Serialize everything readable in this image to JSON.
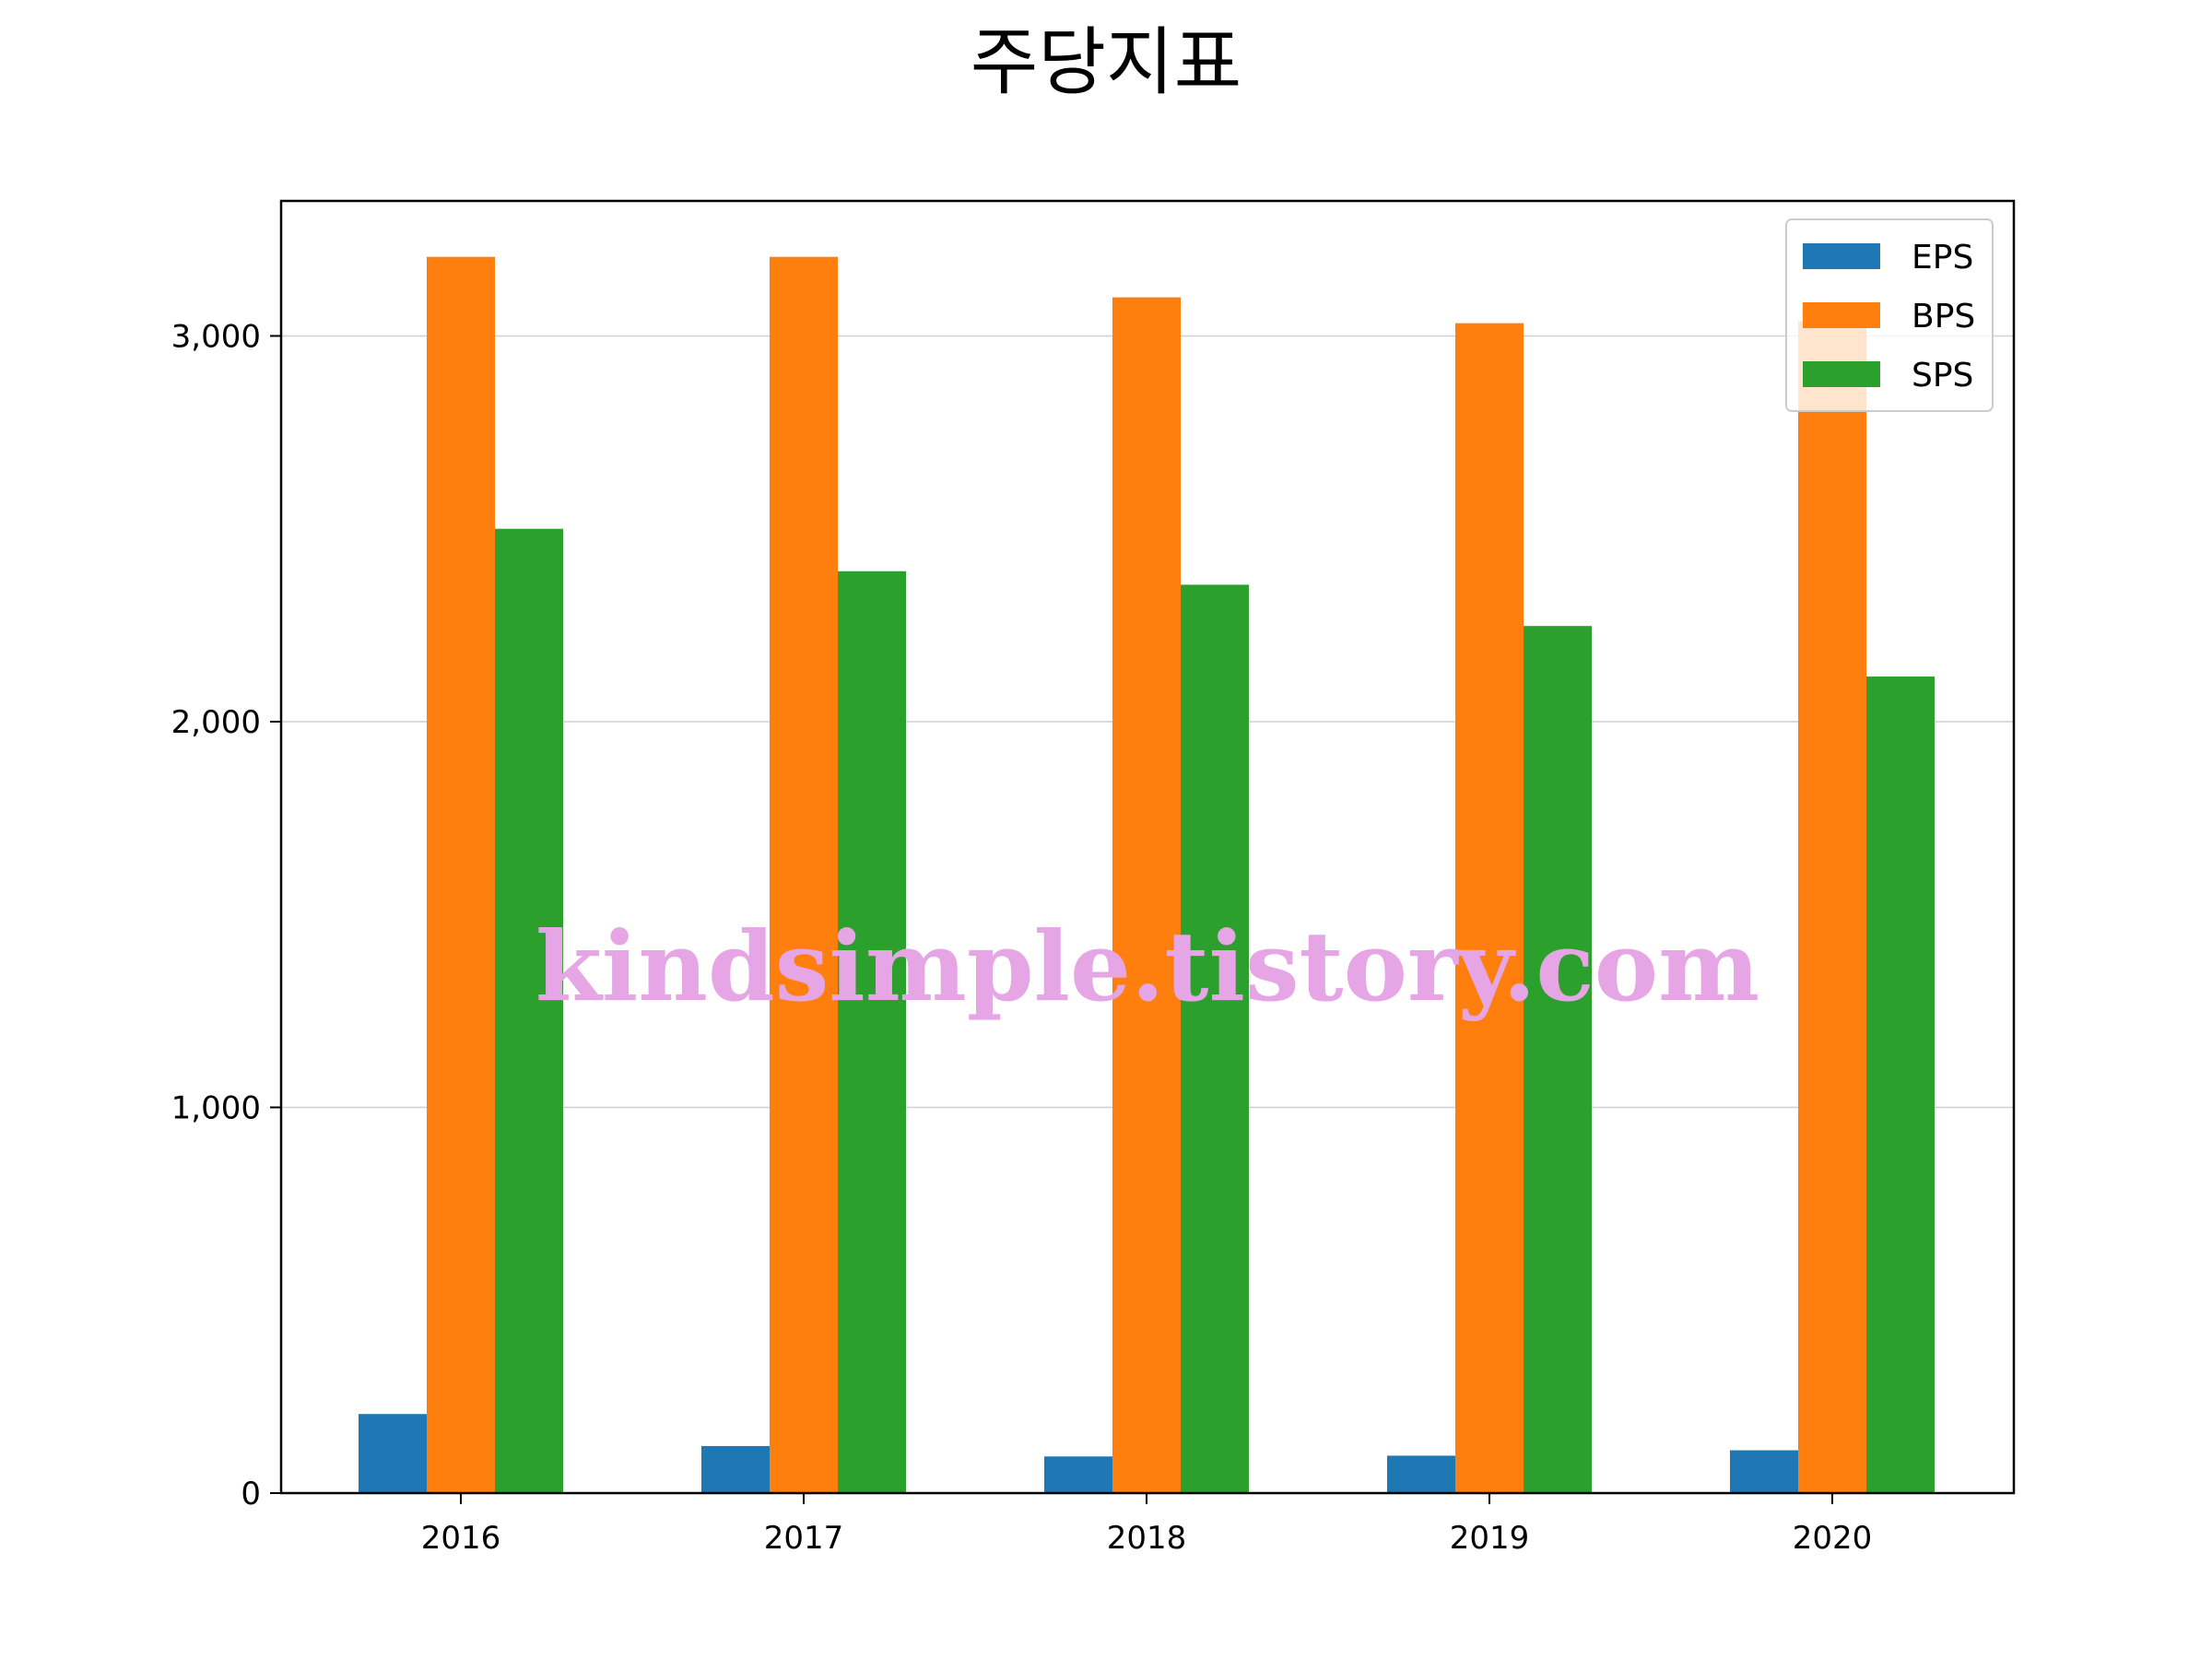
{
  "chart_data": {
    "type": "bar",
    "title": "주당지표",
    "xlabel": "",
    "ylabel": "",
    "categories": [
      "2016",
      "2017",
      "2018",
      "2019",
      "2020"
    ],
    "series": [
      {
        "name": "EPS",
        "color": "#1f77b4",
        "values": [
          205,
          122,
          95,
          97,
          111
        ]
      },
      {
        "name": "BPS",
        "color": "#ff7f0e",
        "values": [
          3205,
          3205,
          3100,
          3033,
          3038
        ]
      },
      {
        "name": "SPS",
        "color": "#2ca02c",
        "values": [
          2500,
          2390,
          2355,
          2248,
          2117
        ]
      }
    ],
    "ylim": [
      0,
      3350
    ],
    "yticks": [
      0,
      1000,
      2000,
      3000
    ],
    "ytick_labels": [
      "0",
      "1,000",
      "2,000",
      "3,000"
    ],
    "grid": "y",
    "legend_position": "top-right",
    "watermark": "kindsimple.tistory.com"
  }
}
